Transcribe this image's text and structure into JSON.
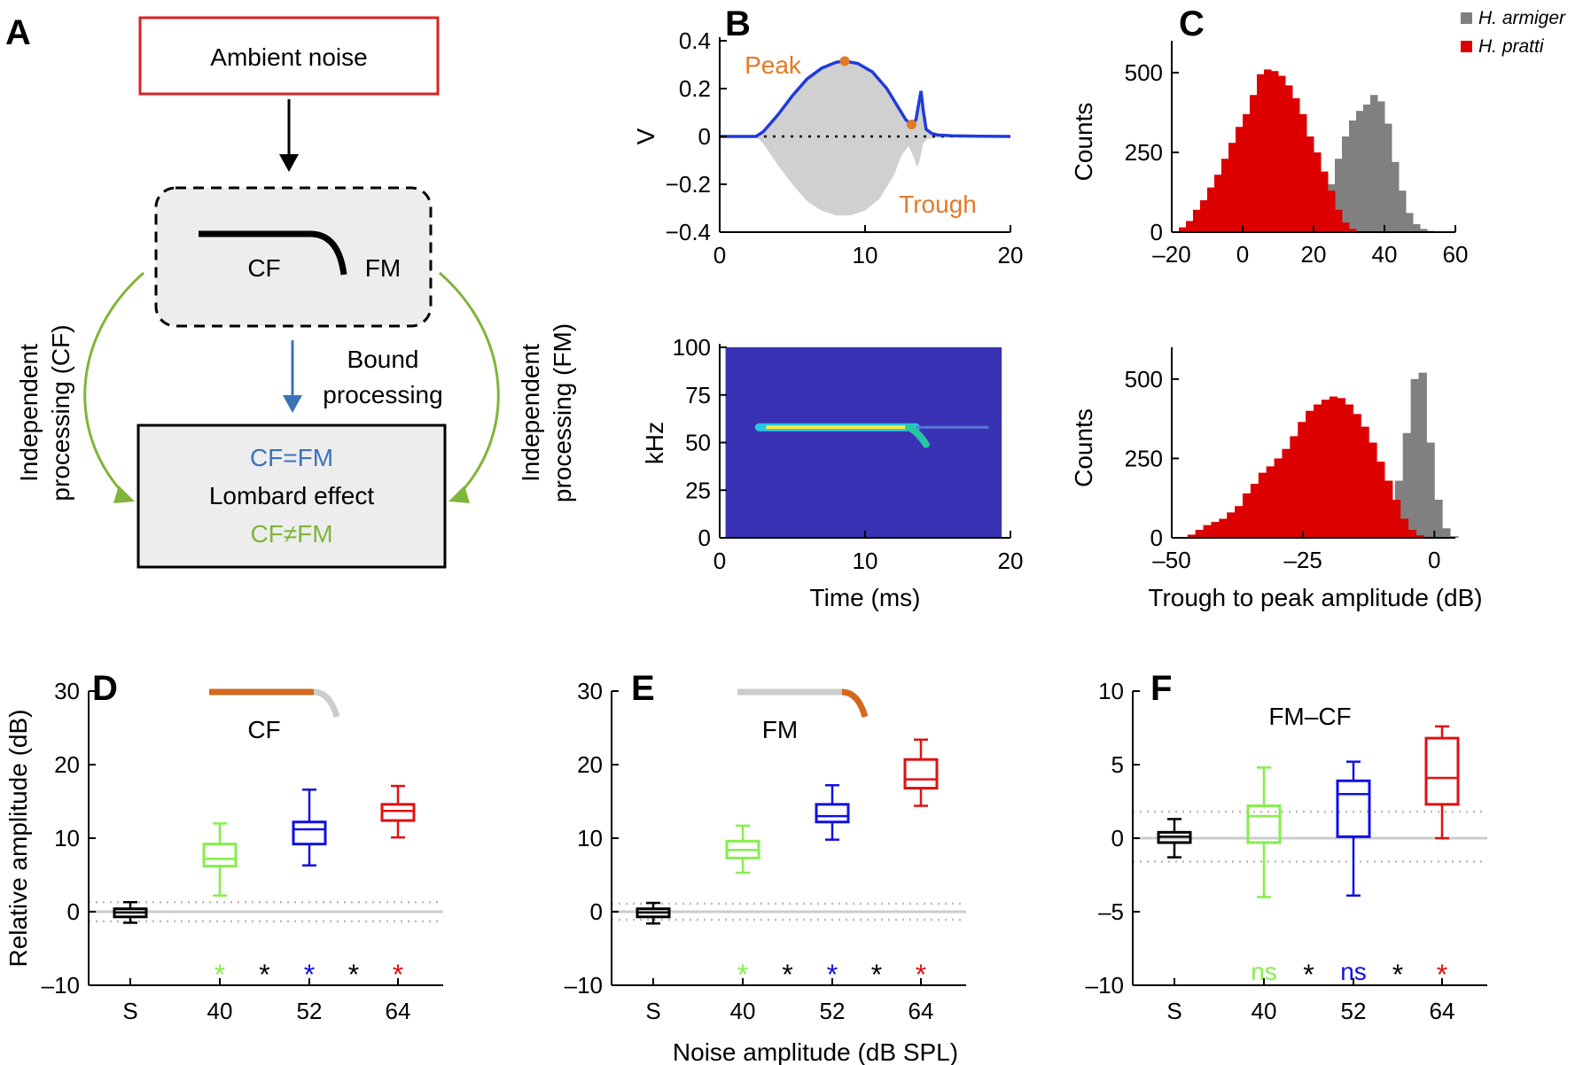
{
  "panels": {
    "A": "A",
    "B": "B",
    "C": "C",
    "D": "D",
    "E": "E",
    "F": "F"
  },
  "diagram": {
    "ambient": "Ambient noise",
    "cf": "CF",
    "fm": "FM",
    "bound_line1": "Bound",
    "bound_line2": "processing",
    "indep_cf_line1": "Independent",
    "indep_cf_line2": "processing (CF)",
    "indep_fm_line1": "Independent",
    "indep_fm_line2": "processing (FM)",
    "result_top": "CF=FM",
    "result_mid": "Lombard effect",
    "result_bot": "CF≠FM",
    "colors": {
      "red": "#d92027",
      "blue": "#3b73b9",
      "green": "#7fb539"
    }
  },
  "chart_data": [
    {
      "id": "B-waveform",
      "type": "line",
      "title": "",
      "xlabel": "",
      "ylabel": "V",
      "xlim": [
        0,
        20
      ],
      "ylim": [
        -0.4,
        0.4
      ],
      "xticks": [
        "0",
        "10",
        "20"
      ],
      "yticks": [
        "−0.4",
        "−0.2",
        "0",
        "0.2",
        "0.4"
      ],
      "series": [
        {
          "name": "envelope",
          "color": "#1f3bdc",
          "x": [
            0,
            2.5,
            3,
            4,
            5,
            6,
            7,
            8,
            8.6,
            9.5,
            10.5,
            11.5,
            12.3,
            12.8,
            13.2,
            13.5,
            13.7,
            13.85,
            14.0,
            14.2,
            14.6,
            15,
            16,
            18,
            20
          ],
          "y": [
            0,
            0,
            0.02,
            0.09,
            0.17,
            0.24,
            0.285,
            0.31,
            0.315,
            0.305,
            0.27,
            0.2,
            0.12,
            0.07,
            0.05,
            0.07,
            0.14,
            0.19,
            0.11,
            0.03,
            0.012,
            0.006,
            0.003,
            0.001,
            0
          ]
        },
        {
          "name": "waveform-lower",
          "color": "#cccccc",
          "x": [
            0,
            2.5,
            3,
            4,
            5,
            6,
            7,
            8,
            9,
            10,
            11,
            12,
            12.5,
            13,
            13.3,
            13.6,
            13.8,
            14.0,
            14.3,
            15,
            16,
            20
          ],
          "y": [
            0,
            0,
            -0.03,
            -0.12,
            -0.2,
            -0.27,
            -0.31,
            -0.33,
            -0.33,
            -0.31,
            -0.26,
            -0.16,
            -0.08,
            -0.04,
            -0.08,
            -0.13,
            -0.09,
            -0.03,
            -0.01,
            -0.005,
            0,
            0
          ]
        }
      ],
      "annotations": [
        {
          "label": "Peak",
          "x": 8.6,
          "y": 0.315
        },
        {
          "label": "Trough",
          "x": 13.2,
          "y": 0.05
        }
      ]
    },
    {
      "id": "B-spectrogram",
      "type": "heatmap",
      "xlabel": "Time (ms)",
      "ylabel": "kHz",
      "xlim": [
        0,
        20
      ],
      "ylim": [
        0,
        100
      ],
      "xticks": [
        "0",
        "10",
        "20"
      ],
      "yticks": [
        "0",
        "25",
        "50",
        "75",
        "100"
      ],
      "cf_line": {
        "x": [
          2.7,
          13.5
        ],
        "y": 58
      },
      "fm_sweep": {
        "x": [
          13.0,
          14.2
        ],
        "y": [
          58,
          49
        ]
      }
    },
    {
      "id": "C-top",
      "type": "bar",
      "xlabel": "",
      "ylabel": "Counts",
      "xlim": [
        -20,
        60
      ],
      "ylim": [
        0,
        600
      ],
      "xticks": [
        "–20",
        "0",
        "20",
        "40",
        "60"
      ],
      "yticks": [
        "0",
        "250",
        "500"
      ],
      "legend": [
        "H. armiger",
        "H. pratti"
      ],
      "legend_position": "top-right",
      "bin_width": 2,
      "series": [
        {
          "name": "H. armiger",
          "color": "#808080",
          "x_start": 16,
          "values": [
            5,
            20,
            50,
            90,
            150,
            230,
            300,
            350,
            380,
            400,
            430,
            410,
            340,
            220,
            130,
            60,
            25,
            10,
            4,
            2
          ]
        },
        {
          "name": "H. pratti",
          "color": "#dd0000",
          "x_start": -18,
          "values": [
            15,
            35,
            70,
            100,
            140,
            180,
            230,
            280,
            330,
            370,
            430,
            495,
            510,
            505,
            490,
            460,
            420,
            370,
            300,
            250,
            190,
            130,
            70,
            30,
            10
          ]
        }
      ]
    },
    {
      "id": "C-bottom",
      "type": "bar",
      "xlabel": "Trough to peak amplitude (dB)",
      "ylabel": "Counts",
      "xlim": [
        -50,
        4
      ],
      "ylim": [
        0,
        600
      ],
      "xticks": [
        "–50",
        "–25",
        "0"
      ],
      "yticks": [
        "0",
        "250",
        "500"
      ],
      "bin_width": 1.5,
      "series": [
        {
          "name": "H. armiger",
          "color": "#808080",
          "x_start": -12,
          "values": [
            8,
            30,
            80,
            180,
            330,
            500,
            520,
            300,
            120,
            30,
            5
          ]
        },
        {
          "name": "H. pratti",
          "color": "#dd0000",
          "x_start": -47,
          "values": [
            10,
            25,
            40,
            50,
            60,
            80,
            100,
            140,
            170,
            205,
            225,
            250,
            280,
            320,
            365,
            400,
            420,
            435,
            445,
            440,
            420,
            390,
            350,
            300,
            240,
            180,
            120,
            60,
            25,
            8,
            3
          ]
        }
      ]
    },
    {
      "id": "D",
      "type": "box",
      "title": "CF",
      "ylabel": "Relative amplitude (dB)",
      "ylim": [
        -10,
        30
      ],
      "yticks": [
        "–10",
        "0",
        "10",
        "20",
        "30"
      ],
      "categories": [
        "S",
        "40",
        "52",
        "64"
      ],
      "colors": [
        "#000000",
        "#84ef4a",
        "#1010e0",
        "#e01010"
      ],
      "boxes": [
        {
          "wl": -1.5,
          "q1": -0.7,
          "med": -0.1,
          "q3": 0.4,
          "wh": 1.3
        },
        {
          "wl": 2.2,
          "q1": 6.2,
          "med": 7.2,
          "q3": 9.2,
          "wh": 12
        },
        {
          "wl": 6.3,
          "q1": 9.2,
          "med": 11.2,
          "q3": 12.2,
          "wh": 16.6
        },
        {
          "wl": 10.1,
          "q1": 12.4,
          "med": 13.7,
          "q3": 14.6,
          "wh": 17.1
        }
      ],
      "ref_band": [
        -1.3,
        1.3
      ],
      "stars": [
        {
          "label": "*",
          "color": "#84ef4a",
          "pos": 1
        },
        {
          "label": "*",
          "color": "#000000",
          "pos": 1.5
        },
        {
          "label": "*",
          "color": "#1010e0",
          "pos": 2
        },
        {
          "label": "*",
          "color": "#000000",
          "pos": 2.5
        },
        {
          "label": "*",
          "color": "#e01010",
          "pos": 3
        }
      ],
      "icon_highlight": "cf"
    },
    {
      "id": "E",
      "type": "box",
      "title": "FM",
      "xlabel": "Noise amplitude (dB SPL)",
      "ylim": [
        -10,
        30
      ],
      "yticks": [
        "–10",
        "0",
        "10",
        "20",
        "30"
      ],
      "categories": [
        "S",
        "40",
        "52",
        "64"
      ],
      "colors": [
        "#000000",
        "#84ef4a",
        "#1010e0",
        "#e01010"
      ],
      "boxes": [
        {
          "wl": -1.6,
          "q1": -0.7,
          "med": -0.1,
          "q3": 0.4,
          "wh": 1.2
        },
        {
          "wl": 5.3,
          "q1": 7.3,
          "med": 8.4,
          "q3": 9.6,
          "wh": 11.7
        },
        {
          "wl": 9.8,
          "q1": 12.2,
          "med": 13,
          "q3": 14.6,
          "wh": 17.2
        },
        {
          "wl": 14.4,
          "q1": 16.8,
          "med": 18,
          "q3": 20.7,
          "wh": 23.4
        }
      ],
      "ref_band": [
        -1.1,
        1.1
      ],
      "stars": [
        {
          "label": "*",
          "color": "#84ef4a",
          "pos": 1
        },
        {
          "label": "*",
          "color": "#000000",
          "pos": 1.5
        },
        {
          "label": "*",
          "color": "#1010e0",
          "pos": 2
        },
        {
          "label": "*",
          "color": "#000000",
          "pos": 2.5
        },
        {
          "label": "*",
          "color": "#e01010",
          "pos": 3
        }
      ],
      "icon_highlight": "fm"
    },
    {
      "id": "F",
      "type": "box",
      "title": "FM–CF",
      "ylim": [
        -10,
        10
      ],
      "yticks": [
        "–10",
        "–5",
        "0",
        "5",
        "10"
      ],
      "categories": [
        "S",
        "40",
        "52",
        "64"
      ],
      "colors": [
        "#000000",
        "#84ef4a",
        "#1010e0",
        "#e01010"
      ],
      "boxes": [
        {
          "wl": -1.3,
          "q1": -0.3,
          "med": 0.1,
          "q3": 0.4,
          "wh": 1.3
        },
        {
          "wl": -4,
          "q1": -0.3,
          "med": 1.5,
          "q3": 2.2,
          "wh": 4.8
        },
        {
          "wl": -3.9,
          "q1": 0.1,
          "med": 3,
          "q3": 3.9,
          "wh": 5.2
        },
        {
          "wl": 0,
          "q1": 2.3,
          "med": 4.1,
          "q3": 6.8,
          "wh": 7.6
        }
      ],
      "ref_band": [
        -1.6,
        1.8
      ],
      "stars": [
        {
          "label": "ns",
          "color": "#84ef4a",
          "pos": 1
        },
        {
          "label": "*",
          "color": "#000000",
          "pos": 1.5
        },
        {
          "label": "ns",
          "color": "#1010e0",
          "pos": 2
        },
        {
          "label": "*",
          "color": "#000000",
          "pos": 2.5
        },
        {
          "label": "*",
          "color": "#e01010",
          "pos": 3
        }
      ]
    }
  ]
}
